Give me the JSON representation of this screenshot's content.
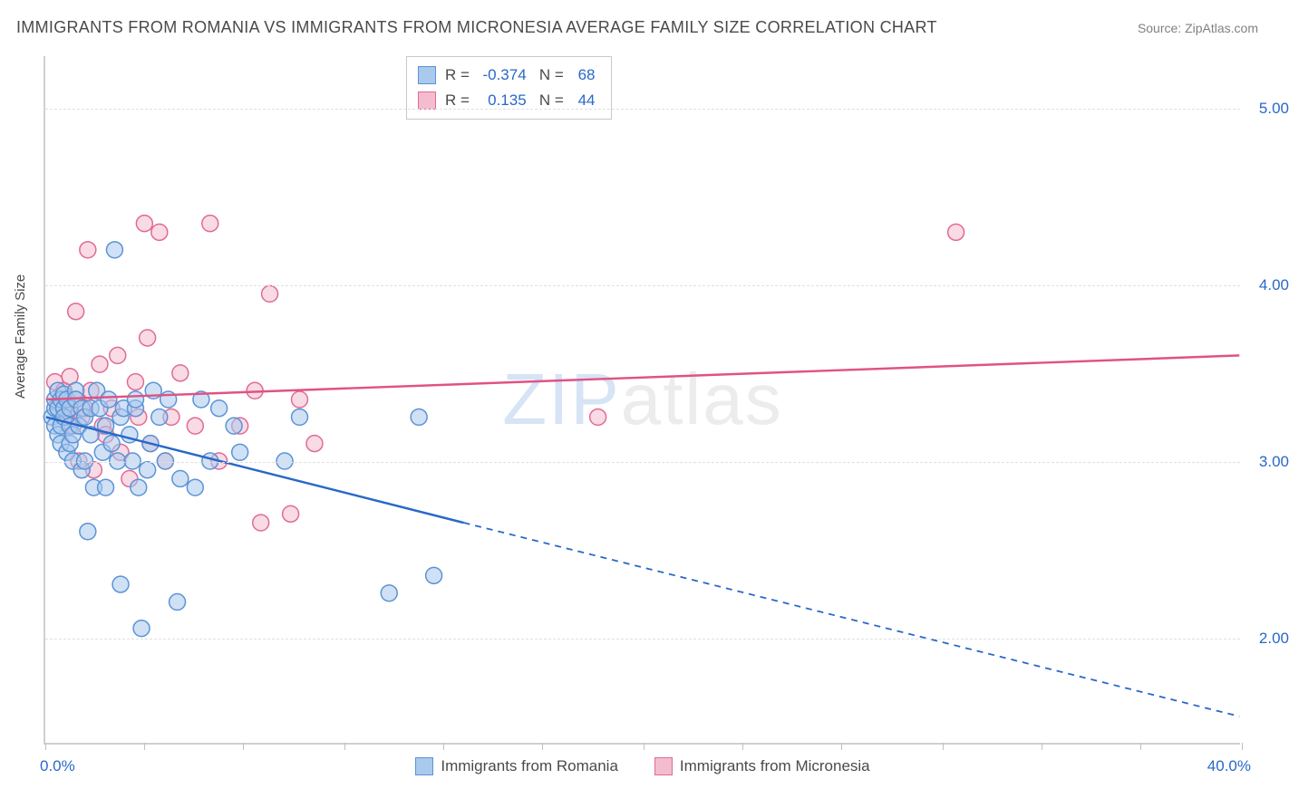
{
  "title": "IMMIGRANTS FROM ROMANIA VS IMMIGRANTS FROM MICRONESIA AVERAGE FAMILY SIZE CORRELATION CHART",
  "source": "Source: ZipAtlas.com",
  "ylabel": "Average Family Size",
  "watermark": {
    "part1": "ZIP",
    "part2": "atlas"
  },
  "chart": {
    "type": "scatter",
    "xlim": [
      0,
      40
    ],
    "ylim": [
      1.4,
      5.3
    ],
    "x_ticks": [
      0,
      3.3,
      6.6,
      10,
      13.3,
      16.6,
      20,
      23.3,
      26.6,
      30,
      33.3,
      36.6,
      40
    ],
    "x_tick_labels": {
      "0": "0.0%",
      "40": "40.0%"
    },
    "y_gridlines": [
      2.0,
      3.0,
      4.0,
      5.0
    ],
    "y_tick_labels": {
      "2.0": "2.00",
      "3.0": "3.00",
      "4.0": "4.00",
      "5.0": "5.00"
    },
    "background_color": "#ffffff",
    "grid_color": "#e0e0e0",
    "axis_color": "#d0d0d0",
    "marker_radius": 9,
    "marker_opacity": 0.55,
    "line_width": 2.5
  },
  "series_a": {
    "label": "Immigrants from Romania",
    "fill": "#a9c9ed",
    "stroke": "#5b93d6",
    "line_color": "#2968c8",
    "R": "-0.374",
    "N": "68",
    "trend": {
      "x1": 0,
      "y1": 3.25,
      "x2_solid": 14,
      "y2_solid": 2.65,
      "x2": 40,
      "y2": 1.55
    },
    "points": [
      [
        0.2,
        3.25
      ],
      [
        0.3,
        3.3
      ],
      [
        0.3,
        3.2
      ],
      [
        0.3,
        3.35
      ],
      [
        0.4,
        3.4
      ],
      [
        0.4,
        3.15
      ],
      [
        0.4,
        3.3
      ],
      [
        0.5,
        3.35
      ],
      [
        0.5,
        3.2
      ],
      [
        0.5,
        3.1
      ],
      [
        0.6,
        3.3
      ],
      [
        0.6,
        3.25
      ],
      [
        0.6,
        3.38
      ],
      [
        0.7,
        3.05
      ],
      [
        0.7,
        3.35
      ],
      [
        0.8,
        3.3
      ],
      [
        0.8,
        3.2
      ],
      [
        0.8,
        3.1
      ],
      [
        0.9,
        3.15
      ],
      [
        0.9,
        3.0
      ],
      [
        1.0,
        3.4
      ],
      [
        1.0,
        3.35
      ],
      [
        1.1,
        3.2
      ],
      [
        1.2,
        2.95
      ],
      [
        1.2,
        3.3
      ],
      [
        1.3,
        3.0
      ],
      [
        1.3,
        3.25
      ],
      [
        1.4,
        2.6
      ],
      [
        1.5,
        3.15
      ],
      [
        1.5,
        3.3
      ],
      [
        1.6,
        2.85
      ],
      [
        1.7,
        3.4
      ],
      [
        1.8,
        3.3
      ],
      [
        1.9,
        3.05
      ],
      [
        2.0,
        3.2
      ],
      [
        2.0,
        2.85
      ],
      [
        2.1,
        3.35
      ],
      [
        2.2,
        3.1
      ],
      [
        2.3,
        4.2
      ],
      [
        2.4,
        3.0
      ],
      [
        2.5,
        3.25
      ],
      [
        2.5,
        2.3
      ],
      [
        2.6,
        3.3
      ],
      [
        2.8,
        3.15
      ],
      [
        2.9,
        3.0
      ],
      [
        3.0,
        3.3
      ],
      [
        3.0,
        3.35
      ],
      [
        3.1,
        2.85
      ],
      [
        3.2,
        2.05
      ],
      [
        3.4,
        2.95
      ],
      [
        3.5,
        3.1
      ],
      [
        3.6,
        3.4
      ],
      [
        3.8,
        3.25
      ],
      [
        4.0,
        3.0
      ],
      [
        4.1,
        3.35
      ],
      [
        4.4,
        2.2
      ],
      [
        4.5,
        2.9
      ],
      [
        5.0,
        2.85
      ],
      [
        5.2,
        3.35
      ],
      [
        5.5,
        3.0
      ],
      [
        5.8,
        3.3
      ],
      [
        6.3,
        3.2
      ],
      [
        6.5,
        3.05
      ],
      [
        8.0,
        3.0
      ],
      [
        8.5,
        3.25
      ],
      [
        12.5,
        3.25
      ],
      [
        13.0,
        2.35
      ],
      [
        11.5,
        2.25
      ]
    ]
  },
  "series_b": {
    "label": "Immigrants from Micronesia",
    "fill": "#f3bdcf",
    "stroke": "#e26a93",
    "line_color": "#e05284",
    "R": "0.135",
    "N": "44",
    "trend": {
      "x1": 0,
      "y1": 3.35,
      "x2": 40,
      "y2": 3.6
    },
    "points": [
      [
        0.3,
        3.45
      ],
      [
        0.4,
        3.3
      ],
      [
        0.5,
        3.35
      ],
      [
        0.6,
        3.4
      ],
      [
        0.7,
        3.25
      ],
      [
        0.8,
        3.3
      ],
      [
        0.8,
        3.48
      ],
      [
        0.9,
        3.2
      ],
      [
        1.0,
        3.85
      ],
      [
        1.0,
        3.35
      ],
      [
        1.1,
        3.0
      ],
      [
        1.2,
        3.25
      ],
      [
        1.3,
        3.3
      ],
      [
        1.4,
        4.2
      ],
      [
        1.5,
        3.4
      ],
      [
        1.6,
        2.95
      ],
      [
        1.8,
        3.55
      ],
      [
        1.9,
        3.2
      ],
      [
        2.0,
        3.15
      ],
      [
        2.2,
        3.3
      ],
      [
        2.4,
        3.6
      ],
      [
        2.5,
        3.05
      ],
      [
        2.8,
        2.9
      ],
      [
        3.0,
        3.45
      ],
      [
        3.1,
        3.25
      ],
      [
        3.3,
        4.35
      ],
      [
        3.4,
        3.7
      ],
      [
        3.5,
        3.1
      ],
      [
        3.8,
        4.3
      ],
      [
        4.0,
        3.0
      ],
      [
        4.2,
        3.25
      ],
      [
        4.5,
        3.5
      ],
      [
        5.0,
        3.2
      ],
      [
        5.5,
        4.35
      ],
      [
        5.8,
        3.0
      ],
      [
        6.5,
        3.2
      ],
      [
        7.0,
        3.4
      ],
      [
        7.2,
        2.65
      ],
      [
        7.5,
        3.95
      ],
      [
        8.2,
        2.7
      ],
      [
        8.5,
        3.35
      ],
      [
        9.0,
        3.1
      ],
      [
        18.5,
        3.25
      ],
      [
        30.5,
        4.3
      ]
    ]
  }
}
